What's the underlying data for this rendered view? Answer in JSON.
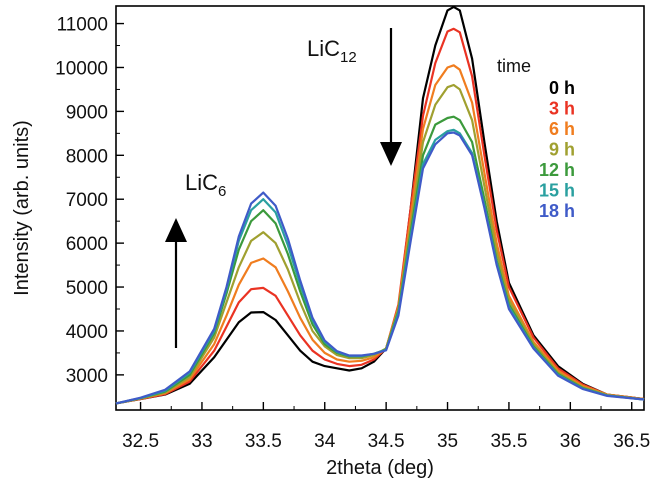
{
  "chart_data": {
    "type": "line",
    "xlabel": "2theta (deg)",
    "ylabel": "Intensity (arb. units)",
    "xlim": [
      32.3,
      36.6
    ],
    "ylim": [
      2200,
      11400
    ],
    "xticks": [
      "32.5",
      "33",
      "33.5",
      "34",
      "34.5",
      "35",
      "35.5",
      "36",
      "36.5"
    ],
    "yticks": [
      "3000",
      "4000",
      "5000",
      "6000",
      "7000",
      "8000",
      "9000",
      "10000",
      "11000"
    ],
    "legend_title": "time",
    "legend_position": "top-right",
    "annotations": {
      "lic6_main": "LiC",
      "lic6_sub": "6",
      "lic6_arrow": "up",
      "lic12_main": "LiC",
      "lic12_sub": "12",
      "lic12_arrow": "down"
    },
    "x": [
      32.3,
      32.5,
      32.7,
      32.9,
      33.1,
      33.2,
      33.3,
      33.4,
      33.5,
      33.6,
      33.7,
      33.8,
      33.9,
      34.0,
      34.1,
      34.2,
      34.3,
      34.4,
      34.5,
      34.6,
      34.7,
      34.8,
      34.9,
      35.0,
      35.05,
      35.1,
      35.2,
      35.3,
      35.4,
      35.5,
      35.7,
      35.9,
      36.1,
      36.3,
      36.6
    ],
    "series": [
      {
        "name": "0 h",
        "color": "#000000",
        "values": [
          2350,
          2450,
          2550,
          2800,
          3400,
          3800,
          4200,
          4420,
          4430,
          4250,
          3900,
          3550,
          3300,
          3200,
          3150,
          3100,
          3150,
          3300,
          3600,
          4500,
          6800,
          9300,
          10500,
          11300,
          11380,
          11300,
          10200,
          8300,
          6500,
          5100,
          3900,
          3200,
          2800,
          2550,
          2450
        ]
      },
      {
        "name": "3 h",
        "color": "#ea3323",
        "values": [
          2350,
          2450,
          2560,
          2850,
          3550,
          4100,
          4650,
          4950,
          4980,
          4800,
          4350,
          3900,
          3550,
          3350,
          3250,
          3200,
          3230,
          3350,
          3600,
          4600,
          6800,
          8900,
          10100,
          10820,
          10880,
          10800,
          9800,
          8000,
          6300,
          5000,
          3850,
          3150,
          2780,
          2550,
          2450
        ]
      },
      {
        "name": "6 h",
        "color": "#f07d1f",
        "values": [
          2350,
          2460,
          2580,
          2900,
          3700,
          4350,
          5050,
          5550,
          5650,
          5450,
          4900,
          4300,
          3800,
          3500,
          3350,
          3300,
          3320,
          3400,
          3600,
          4550,
          6600,
          8600,
          9600,
          10000,
          10050,
          9950,
          9200,
          7600,
          6000,
          4800,
          3750,
          3100,
          2750,
          2550,
          2450
        ]
      },
      {
        "name": "9 h",
        "color": "#a0a030",
        "values": [
          2350,
          2460,
          2600,
          2950,
          3850,
          4650,
          5450,
          6050,
          6250,
          6000,
          5400,
          4650,
          4000,
          3650,
          3450,
          3380,
          3380,
          3450,
          3600,
          4500,
          6400,
          8300,
          9150,
          9550,
          9600,
          9500,
          8800,
          7300,
          5800,
          4700,
          3700,
          3050,
          2720,
          2540,
          2440
        ]
      },
      {
        "name": "12 h",
        "color": "#3c9a3c",
        "values": [
          2350,
          2470,
          2620,
          3000,
          3950,
          4850,
          5850,
          6500,
          6750,
          6450,
          5750,
          4900,
          4150,
          3700,
          3500,
          3420,
          3420,
          3480,
          3580,
          4450,
          6250,
          8000,
          8700,
          8850,
          8880,
          8800,
          8300,
          7000,
          5600,
          4600,
          3650,
          3020,
          2700,
          2530,
          2440
        ]
      },
      {
        "name": "15 h",
        "color": "#2aa0a0",
        "values": [
          2350,
          2470,
          2640,
          3050,
          4000,
          4950,
          6050,
          6750,
          7000,
          6700,
          5950,
          5050,
          4250,
          3750,
          3520,
          3430,
          3430,
          3480,
          3570,
          4400,
          6150,
          7800,
          8350,
          8550,
          8580,
          8500,
          8050,
          6850,
          5550,
          4550,
          3620,
          3000,
          2690,
          2530,
          2440
        ]
      },
      {
        "name": "18 h",
        "color": "#3f5bc8",
        "values": [
          2350,
          2480,
          2660,
          3080,
          4050,
          5000,
          6150,
          6900,
          7150,
          6850,
          6100,
          5150,
          4300,
          3780,
          3540,
          3440,
          3440,
          3480,
          3560,
          4350,
          6050,
          7700,
          8250,
          8500,
          8520,
          8450,
          8000,
          6800,
          5500,
          4500,
          3600,
          2980,
          2680,
          2520,
          2440
        ]
      }
    ]
  }
}
